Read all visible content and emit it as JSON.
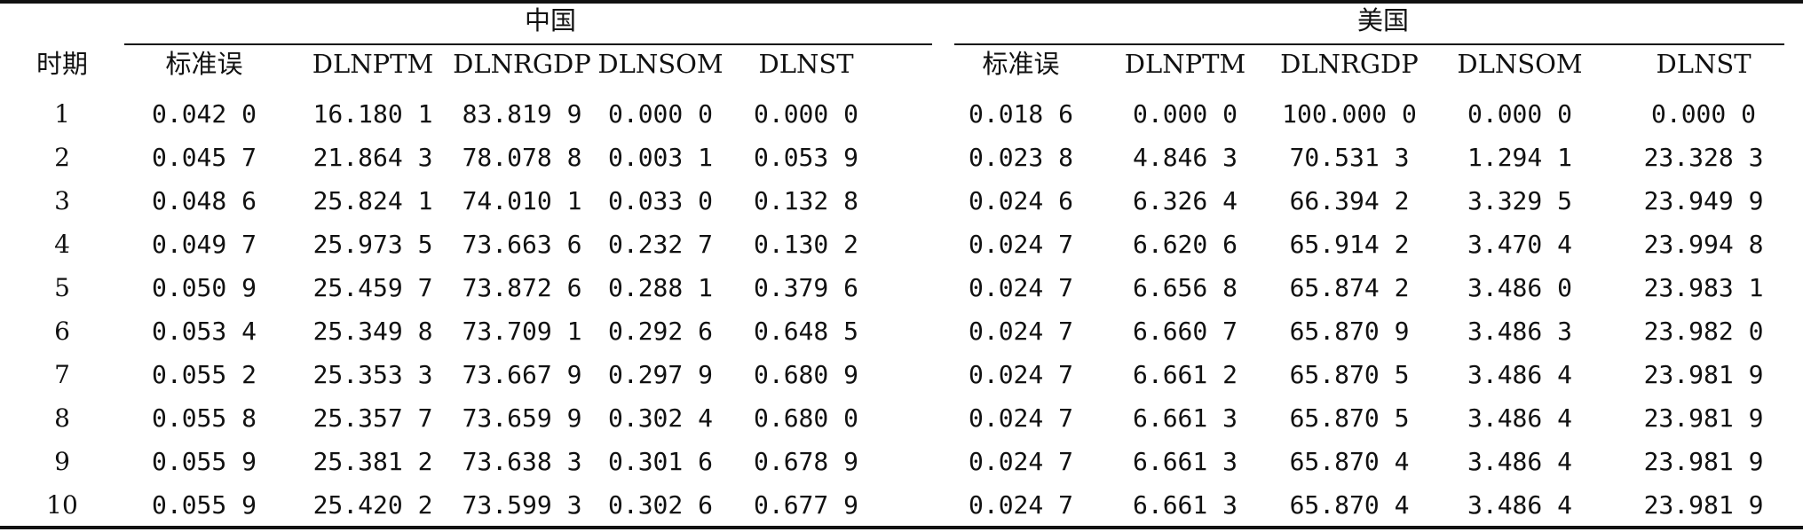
{
  "table": {
    "groups": [
      "中国",
      "美国"
    ],
    "period_header": "时期",
    "column_headers": [
      "标准误",
      "DLNPTM",
      "DLNRGDP",
      "DLNSOM",
      "DLNST",
      "标准误",
      "DLNPTM",
      "DLNRGDP",
      "DLNSOM",
      "DLNST"
    ],
    "rows": [
      {
        "period": "1",
        "values": [
          "0.042 0",
          "16.180 1",
          "83.819 9",
          "0.000 0",
          "0.000 0",
          "0.018 6",
          "0.000 0",
          "100.000 0",
          "0.000 0",
          "0.000 0"
        ]
      },
      {
        "period": "2",
        "values": [
          "0.045 7",
          "21.864 3",
          "78.078 8",
          "0.003 1",
          "0.053 9",
          "0.023 8",
          "4.846 3",
          "70.531 3",
          "1.294 1",
          "23.328 3"
        ]
      },
      {
        "period": "3",
        "values": [
          "0.048 6",
          "25.824 1",
          "74.010 1",
          "0.033 0",
          "0.132 8",
          "0.024 6",
          "6.326 4",
          "66.394 2",
          "3.329 5",
          "23.949 9"
        ]
      },
      {
        "period": "4",
        "values": [
          "0.049 7",
          "25.973 5",
          "73.663 6",
          "0.232 7",
          "0.130 2",
          "0.024 7",
          "6.620 6",
          "65.914 2",
          "3.470 4",
          "23.994 8"
        ]
      },
      {
        "period": "5",
        "values": [
          "0.050 9",
          "25.459 7",
          "73.872 6",
          "0.288 1",
          "0.379 6",
          "0.024 7",
          "6.656 8",
          "65.874 2",
          "3.486 0",
          "23.983 1"
        ]
      },
      {
        "period": "6",
        "values": [
          "0.053 4",
          "25.349 8",
          "73.709 1",
          "0.292 6",
          "0.648 5",
          "0.024 7",
          "6.660 7",
          "65.870 9",
          "3.486 3",
          "23.982 0"
        ]
      },
      {
        "period": "7",
        "values": [
          "0.055 2",
          "25.353 3",
          "73.667 9",
          "0.297 9",
          "0.680 9",
          "0.024 7",
          "6.661 2",
          "65.870 5",
          "3.486 4",
          "23.981 9"
        ]
      },
      {
        "period": "8",
        "values": [
          "0.055 8",
          "25.357 7",
          "73.659 9",
          "0.302 4",
          "0.680 0",
          "0.024 7",
          "6.661 3",
          "65.870 5",
          "3.486 4",
          "23.981 9"
        ]
      },
      {
        "period": "9",
        "values": [
          "0.055 9",
          "25.381 2",
          "73.638 3",
          "0.301 6",
          "0.678 9",
          "0.024 7",
          "6.661 3",
          "65.870 4",
          "3.486 4",
          "23.981 9"
        ]
      },
      {
        "period": "10",
        "values": [
          "0.055 9",
          "25.420 2",
          "73.599 3",
          "0.302 6",
          "0.677 9",
          "0.024 7",
          "6.661 3",
          "65.870 4",
          "3.486 4",
          "23.981 9"
        ]
      }
    ]
  }
}
